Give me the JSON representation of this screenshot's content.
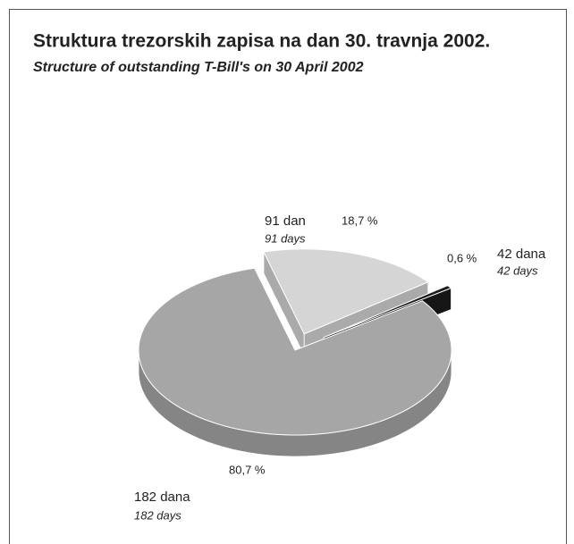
{
  "chart_data": {
    "type": "pie",
    "title": "Struktura trezorskih zapisa na dan 30. travnja 2002.",
    "subtitle": "Structure of outstanding T-Bill's on 30 April 2002",
    "categories": [
      "91 dan",
      "42 dana",
      "182 dana"
    ],
    "categories_en": [
      "91 days",
      "42 days",
      "182 days"
    ],
    "values": [
      18.7,
      0.6,
      80.7
    ],
    "value_labels": [
      "18,7 %",
      "0,6 %",
      "80,7 %"
    ],
    "colors": [
      "#d5d5d5",
      "#1c1c1c",
      "#a6a6a6"
    ]
  }
}
